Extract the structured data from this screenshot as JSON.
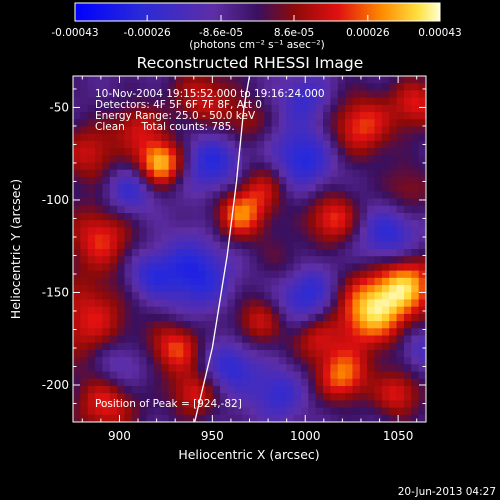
{
  "chart_data": {
    "type": "heatmap",
    "title": "Reconstructed RHESSI Image",
    "xlabel": "Heliocentric X (arcsec)",
    "ylabel": "Heliocentric Y (arcsec)",
    "xlim": [
      875,
      1065
    ],
    "ylim": [
      -220,
      -33
    ],
    "x_ticks": [
      900,
      950,
      1000,
      1050
    ],
    "y_ticks": [
      -50,
      -100,
      -150,
      -200
    ],
    "x_tick_labels": [
      "900",
      "950",
      "1000",
      "1050"
    ],
    "y_tick_labels": [
      "-50",
      "-100",
      "-150",
      "-200"
    ],
    "colorbar": {
      "range": [
        -0.00043,
        0.00043
      ],
      "tick_values": [
        -0.00043,
        -0.00026,
        -8.6e-05,
        8.6e-05,
        0.00026,
        0.00043
      ],
      "tick_labels": [
        "-0.00043",
        "-0.00026",
        "-8.6e-05",
        "8.6e-05",
        "0.00026",
        "0.00043"
      ],
      "units": "(photons cm⁻² s⁻¹ asec⁻²)"
    },
    "info_lines": [
      "10-Nov-2004 19:15:52.000 to 19:16:24.000",
      "Detectors: 4F 5F 6F 7F 8F, Att 0",
      "Energy Range: 25.0 - 50.0 keV",
      "Clean     Total counts: 785."
    ],
    "peak_label": "Position of Peak = [924,-82]",
    "peak": [
      924,
      -82
    ],
    "blobs": [
      {
        "x": 922,
        "y": -80,
        "v": 1.0,
        "r": 9
      },
      {
        "x": 910,
        "y": -60,
        "v": 0.45,
        "r": 9
      },
      {
        "x": 885,
        "y": -75,
        "v": 0.5,
        "r": 12
      },
      {
        "x": 890,
        "y": -120,
        "v": 0.6,
        "r": 13
      },
      {
        "x": 884,
        "y": -165,
        "v": 0.55,
        "r": 16
      },
      {
        "x": 893,
        "y": -210,
        "v": 0.6,
        "r": 12
      },
      {
        "x": 945,
        "y": -45,
        "v": 0.5,
        "r": 12
      },
      {
        "x": 968,
        "y": -58,
        "v": 0.35,
        "r": 9
      },
      {
        "x": 978,
        "y": -92,
        "v": 0.45,
        "r": 10
      },
      {
        "x": 965,
        "y": -108,
        "v": 0.75,
        "r": 10
      },
      {
        "x": 930,
        "y": -180,
        "v": 0.65,
        "r": 10
      },
      {
        "x": 940,
        "y": -205,
        "v": 0.55,
        "r": 9
      },
      {
        "x": 975,
        "y": -165,
        "v": 0.5,
        "r": 10
      },
      {
        "x": 990,
        "y": -135,
        "v": 0.3,
        "r": 10
      },
      {
        "x": 1015,
        "y": -110,
        "v": 0.65,
        "r": 10
      },
      {
        "x": 1030,
        "y": -60,
        "v": 0.65,
        "r": 12
      },
      {
        "x": 1060,
        "y": -48,
        "v": 0.55,
        "r": 10
      },
      {
        "x": 1055,
        "y": -95,
        "v": 0.35,
        "r": 10
      },
      {
        "x": 1035,
        "y": -160,
        "v": 0.95,
        "r": 14
      },
      {
        "x": 1055,
        "y": -145,
        "v": 0.8,
        "r": 12
      },
      {
        "x": 1020,
        "y": -195,
        "v": 0.75,
        "r": 10
      },
      {
        "x": 1005,
        "y": -175,
        "v": 0.45,
        "r": 9
      },
      {
        "x": 1050,
        "y": -205,
        "v": 0.55,
        "r": 9
      },
      {
        "x": 950,
        "y": -80,
        "v": -0.55,
        "r": 12
      },
      {
        "x": 905,
        "y": -95,
        "v": -0.5,
        "r": 10
      },
      {
        "x": 940,
        "y": -140,
        "v": -0.6,
        "r": 14
      },
      {
        "x": 998,
        "y": -78,
        "v": -0.6,
        "r": 12
      },
      {
        "x": 1000,
        "y": -150,
        "v": -0.6,
        "r": 12
      },
      {
        "x": 1045,
        "y": -120,
        "v": -0.55,
        "r": 12
      },
      {
        "x": 900,
        "y": -190,
        "v": -0.4,
        "r": 10
      },
      {
        "x": 960,
        "y": -190,
        "v": -0.5,
        "r": 10
      },
      {
        "x": 985,
        "y": -205,
        "v": -0.45,
        "r": 10
      },
      {
        "x": 1000,
        "y": -45,
        "v": -0.4,
        "r": 10
      },
      {
        "x": 915,
        "y": -140,
        "v": -0.4,
        "r": 9
      },
      {
        "x": 1062,
        "y": -180,
        "v": -0.35,
        "r": 8
      }
    ],
    "limb_curve": [
      [
        940,
        -222
      ],
      [
        950,
        -180
      ],
      [
        958,
        -130
      ],
      [
        963,
        -90
      ],
      [
        967,
        -50
      ],
      [
        970,
        -33
      ]
    ]
  },
  "footer": {
    "date": "20-Jun-2013 04:27"
  },
  "colors": {
    "background": "#000000",
    "text": "#ffffff",
    "limb": "#ffffff"
  }
}
